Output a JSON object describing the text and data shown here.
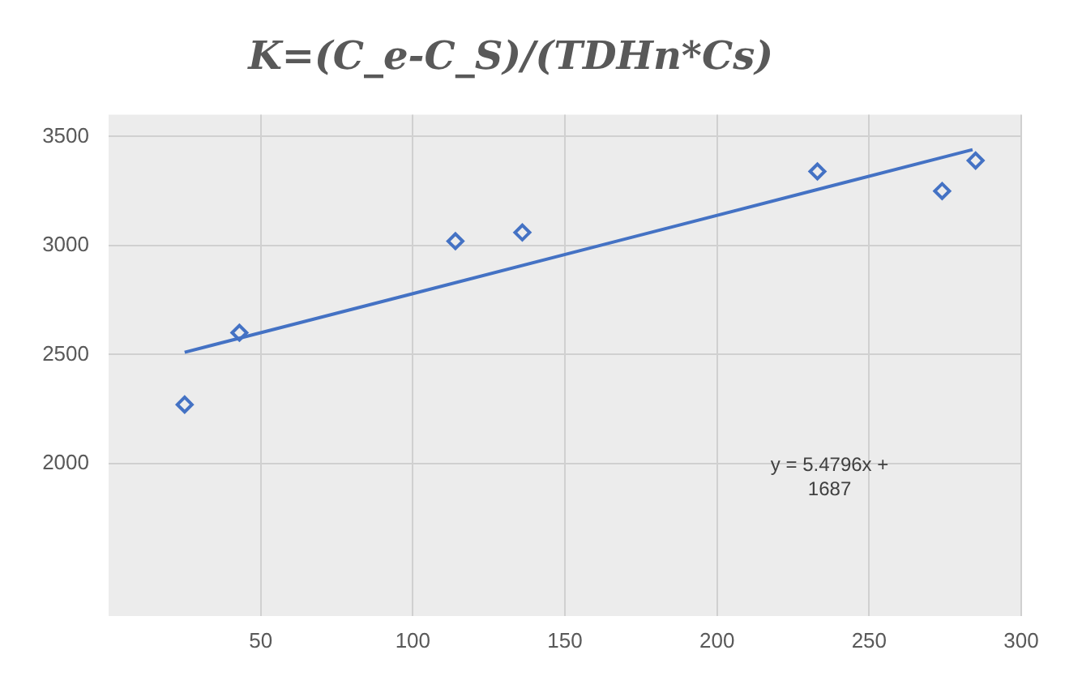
{
  "chart_data": {
    "type": "scatter",
    "title": "K=(C_e-C_S)/(TDHn*Cs)",
    "xlim": [
      0,
      300
    ],
    "xticks": [
      50,
      100,
      150,
      200,
      250,
      300
    ],
    "ylim": [
      1300,
      3600
    ],
    "yticks": [
      2000,
      2500,
      3000,
      3500
    ],
    "grid": true,
    "marker": "diamond",
    "series": [
      {
        "color": "#4472c4",
        "x": [
          25,
          43,
          114,
          136,
          233,
          274,
          285
        ],
        "values": [
          2270,
          2600,
          3020,
          3060,
          3340,
          3250,
          3390
        ]
      },
      {
        "type": "line",
        "marker": "none",
        "color": "#4472c4",
        "x": [
          25,
          284
        ],
        "values": [
          2510,
          3440
        ]
      }
    ],
    "annotations": [
      "y = 5.4796x + 1687"
    ]
  }
}
